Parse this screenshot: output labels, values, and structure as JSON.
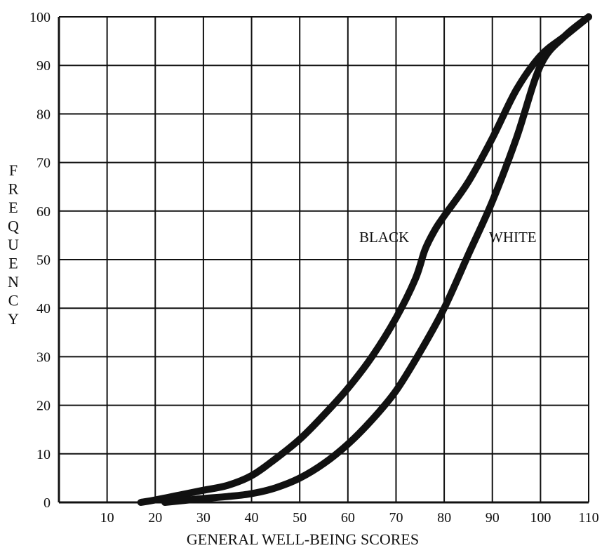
{
  "chart_data": {
    "type": "line",
    "title": "",
    "xlabel": "GENERAL WELL-BEING SCORES",
    "ylabel": "FREQUENCY",
    "xlim": [
      0,
      110
    ],
    "ylim": [
      0,
      100
    ],
    "x_ticks": [
      "10",
      "20",
      "30",
      "40",
      "50",
      "60",
      "70",
      "80",
      "90",
      "100",
      "110"
    ],
    "y_ticks": [
      "0",
      "10",
      "20",
      "30",
      "40",
      "50",
      "60",
      "70",
      "80",
      "90",
      "100"
    ],
    "grid": true,
    "series": [
      {
        "name": "BLACK",
        "x": [
          17,
          20,
          25,
          30,
          35,
          40,
          45,
          50,
          55,
          60,
          65,
          70,
          74,
          76,
          78,
          80,
          85,
          90,
          95,
          100,
          105,
          110
        ],
        "y": [
          0,
          0.5,
          1.5,
          2.5,
          3.5,
          5.5,
          9,
          13,
          18,
          23.5,
          30,
          38,
          46,
          52,
          56,
          59,
          66,
          75,
          85,
          92,
          96,
          100
        ]
      },
      {
        "name": "WHITE",
        "x": [
          22,
          25,
          30,
          35,
          40,
          45,
          50,
          55,
          60,
          65,
          70,
          75,
          80,
          85,
          90,
          95,
          100,
          105,
          110
        ],
        "y": [
          0,
          0.3,
          0.8,
          1.2,
          1.8,
          3,
          5,
          8,
          12,
          17,
          23,
          31,
          40,
          51,
          62,
          75,
          90,
          96,
          100
        ]
      }
    ]
  }
}
